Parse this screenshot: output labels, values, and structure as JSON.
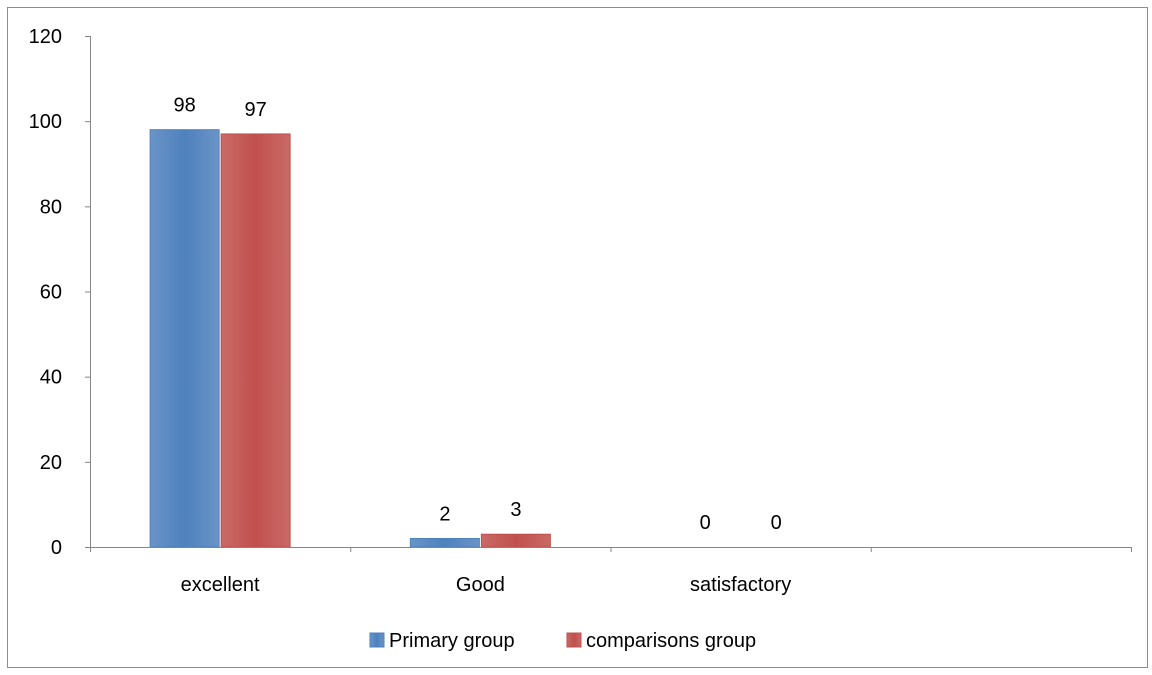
{
  "chart_data": {
    "type": "bar",
    "title": "",
    "xlabel": "",
    "ylabel": "",
    "categories": [
      "excellent",
      "Good",
      "satisfactory",
      ""
    ],
    "series": [
      {
        "name": "Primary group",
        "values": [
          98,
          2,
          0,
          null
        ],
        "color": "#4F81BD"
      },
      {
        "name": "comparisons group",
        "values": [
          97,
          3,
          0,
          null
        ],
        "color": "#C0504D"
      }
    ],
    "ylim": [
      0,
      120
    ],
    "yticks": [
      0,
      20,
      40,
      60,
      80,
      100,
      120
    ],
    "grid": false,
    "legend_position": "bottom"
  }
}
